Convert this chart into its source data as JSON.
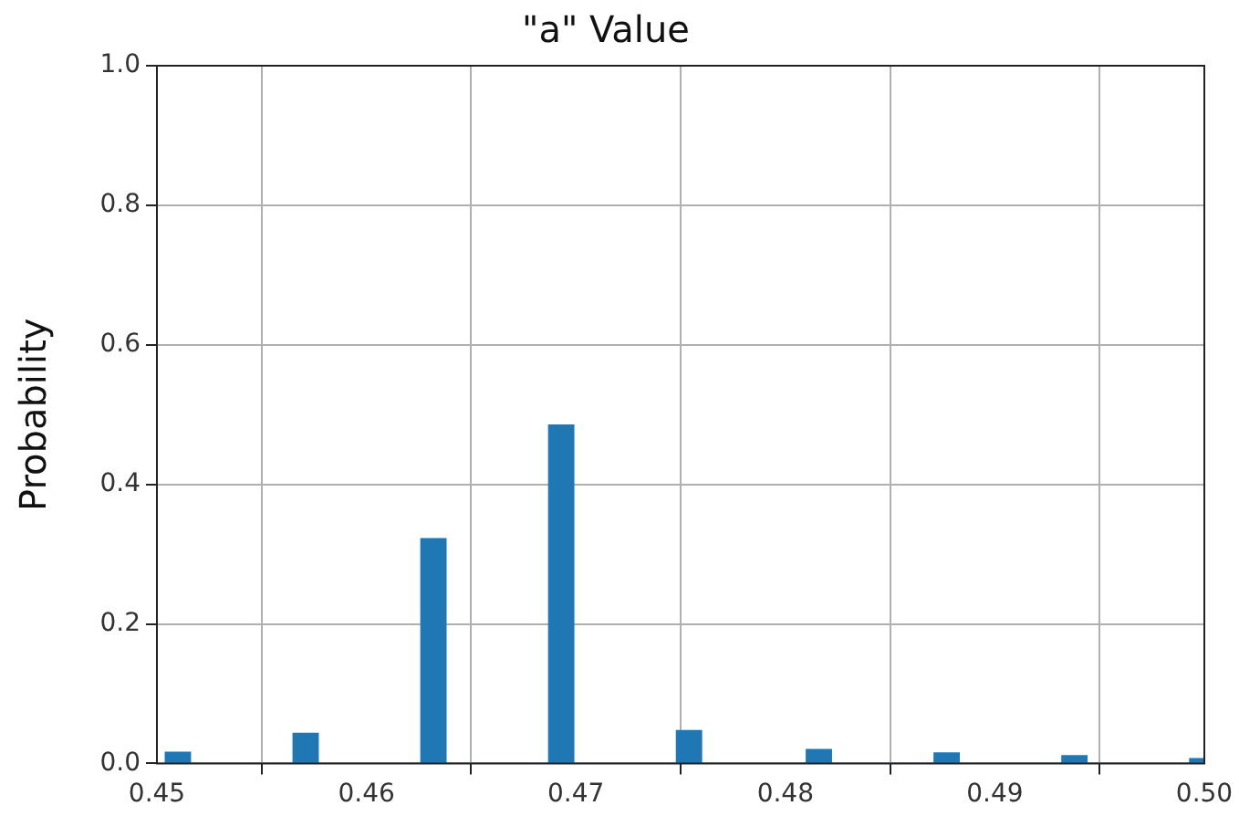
{
  "chart_data": {
    "type": "histogram",
    "title": "\"a\" Value",
    "ylabel": "Probability",
    "bins": [
      0.4504,
      0.4516,
      0.4565,
      0.4577,
      0.4626,
      0.4638,
      0.4687,
      0.4699,
      0.4748,
      0.476,
      0.481,
      0.4822,
      0.4871,
      0.4883,
      0.4932,
      0.4944,
      0.4993,
      0.5
    ],
    "values": [
      0.016,
      0,
      0.043,
      0,
      0.322,
      0,
      0.485,
      0,
      0.047,
      0,
      0.02,
      0,
      0.015,
      0,
      0.011,
      0,
      0.007
    ],
    "color": "#1f77b4",
    "xlim": [
      0.45,
      0.5
    ],
    "xticks": [
      0.45,
      0.46,
      0.47,
      0.48,
      0.49,
      {
        "value": 0.5,
        "label": "0.50"
      }
    ],
    "ylim": [
      0,
      1
    ],
    "yticks": [
      {
        "value": 0,
        "label": "0.0"
      },
      0.2,
      0.4,
      0.6,
      0.8,
      {
        "value": 1,
        "label": "1.0"
      }
    ],
    "grid": true
  }
}
